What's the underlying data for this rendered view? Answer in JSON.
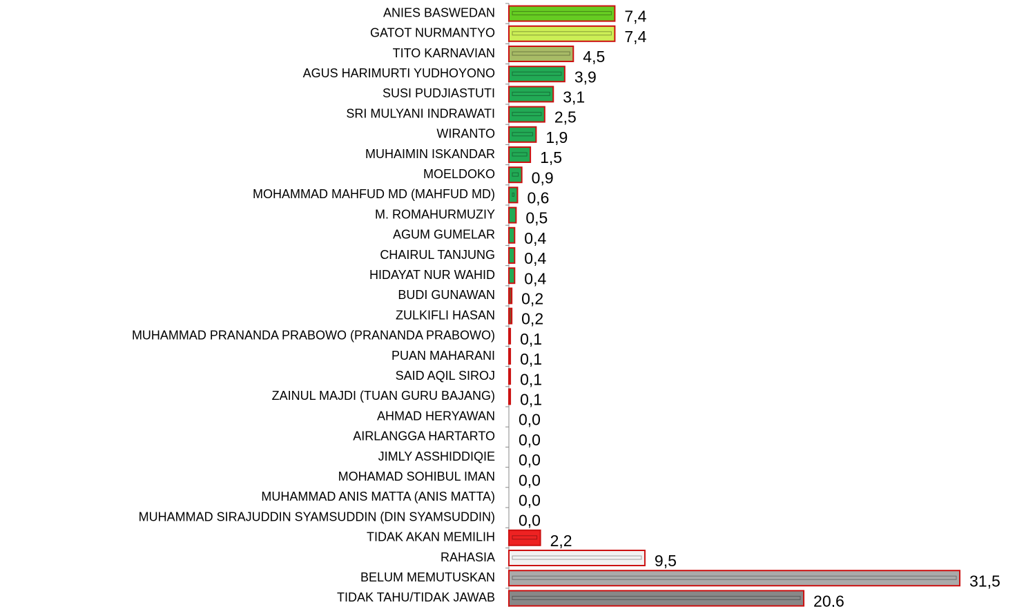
{
  "chart_data": {
    "type": "hbar",
    "categories": [
      "ANIES BASWEDAN",
      "GATOT NURMANTYO",
      "TITO KARNAVIAN",
      "AGUS HARIMURTI YUDHOYONO",
      "SUSI PUDJIASTUTI",
      "SRI MULYANI INDRAWATI",
      "WIRANTO",
      "MUHAIMIN ISKANDAR",
      "MOELDOKO",
      "MOHAMMAD MAHFUD MD (MAHFUD MD)",
      "M. ROMAHURMUZIY",
      "AGUM GUMELAR",
      "CHAIRUL TANJUNG",
      "HIDAYAT NUR WAHID",
      "BUDI GUNAWAN",
      "ZULKIFLI HASAN",
      "MUHAMMAD PRANANDA PRABOWO (PRANANDA PRABOWO)",
      "PUAN MAHARANI",
      "SAID AQIL SIROJ",
      "ZAINUL MAJDI (TUAN GURU BAJANG)",
      "AHMAD HERYAWAN",
      "AIRLANGGA HARTARTO",
      "JIMLY ASSHIDDIQIE",
      "MOHAMAD SOHIBUL IMAN",
      "MUHAMMAD ANIS MATTA (ANIS MATTA)",
      "MUHAMMAD SIRAJUDDIN SYAMSUDDIN (DIN SYAMSUDDIN)",
      "TIDAK AKAN MEMILIH",
      "RAHASIA",
      "BELUM MEMUTUSKAN",
      "TIDAK TAHU/TIDAK JAWAB"
    ],
    "values": [
      7.4,
      7.4,
      4.5,
      3.9,
      3.1,
      2.5,
      1.9,
      1.5,
      0.9,
      0.6,
      0.5,
      0.4,
      0.4,
      0.4,
      0.2,
      0.2,
      0.1,
      0.1,
      0.1,
      0.1,
      0.0,
      0.0,
      0.0,
      0.0,
      0.0,
      0.0,
      2.2,
      9.5,
      31.5,
      20.6
    ],
    "value_labels": [
      "7,4",
      "7,4",
      "4,5",
      "3,9",
      "3,1",
      "2,5",
      "1,9",
      "1,5",
      "0,9",
      "0,6",
      "0,5",
      "0,4",
      "0,4",
      "0,4",
      "0,2",
      "0,2",
      "0,1",
      "0,1",
      "0,1",
      "0,1",
      "0,0",
      "0,0",
      "0,0",
      "0,0",
      "0,0",
      "0,0",
      "2,2",
      "9,5",
      "31,5",
      "20,6"
    ],
    "colors": [
      "#66cc22",
      "#ccee55",
      "#a8bb66",
      "#22aa55",
      "#22aa55",
      "#22aa55",
      "#22aa55",
      "#22aa55",
      "#22aa55",
      "#22aa55",
      "#22aa55",
      "#22aa55",
      "#22aa55",
      "#22aa55",
      "#8b4a2b",
      "#8b4a2b",
      "#8b4a2b",
      "#8b4a2b",
      "#8b4a2b",
      "#8b4a2b",
      "#22aa55",
      "#22aa55",
      "#22aa55",
      "#22aa55",
      "#22aa55",
      "#22aa55",
      "#ee2222",
      "#f2f2f2",
      "#aaaaaa",
      "#888888"
    ],
    "xlim": [
      0,
      31.5
    ]
  }
}
